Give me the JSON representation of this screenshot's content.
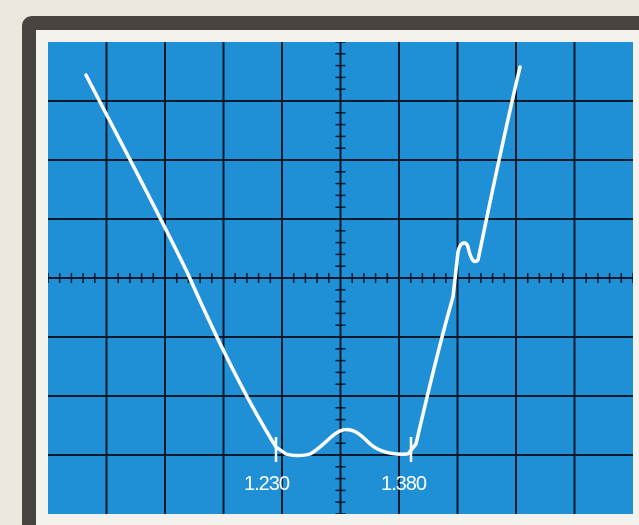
{
  "screen": {
    "background_color": "#1f8fd6",
    "grid_color": "#0b1a2a",
    "trace_color": "#ffffff"
  },
  "markers": {
    "left_label": "1.230",
    "right_label": "1.380"
  }
}
